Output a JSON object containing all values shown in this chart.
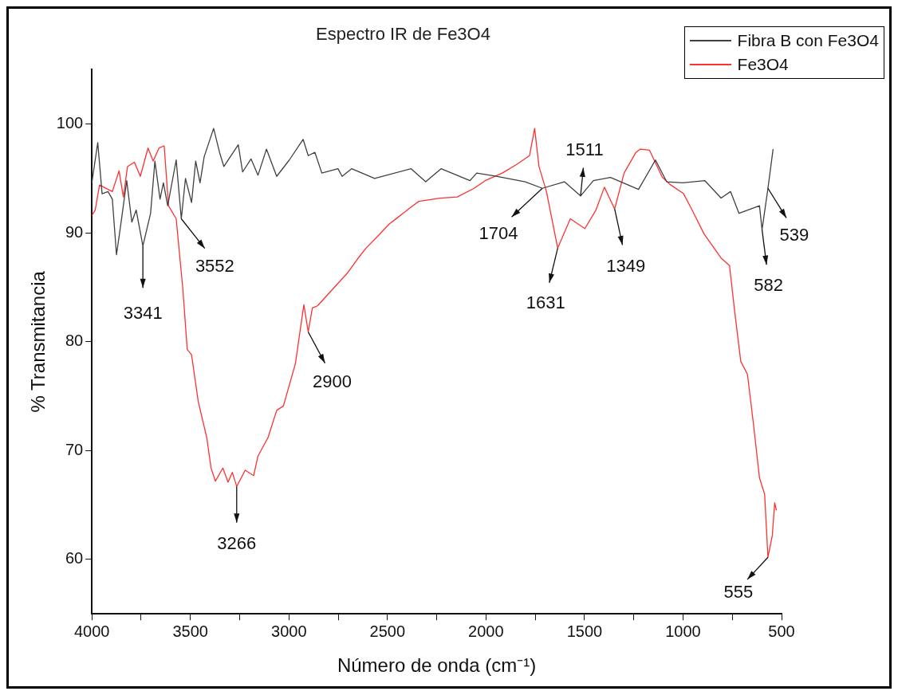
{
  "chart_data": {
    "type": "line",
    "title": "Espectro IR de Fe3O4",
    "xlabel": "Número de onda (cm⁻¹)",
    "ylabel": "% Transmitancia",
    "xlim": [
      4000,
      500
    ],
    "xticks": [
      4000,
      {
        "value": 3750,
        "label": null
      },
      3500,
      {
        "value": 3250,
        "label": null
      },
      3000,
      {
        "value": 2750,
        "label": null
      },
      2500,
      {
        "value": 2250,
        "label": null
      },
      2000,
      {
        "value": 1750,
        "label": null
      },
      1500,
      {
        "value": 1250,
        "label": null
      },
      1000,
      {
        "value": 750,
        "label": null
      },
      500
    ],
    "ylim": [
      55,
      105
    ],
    "yticks": [
      60,
      70,
      80,
      90,
      100
    ],
    "legend": "top right",
    "series": [
      {
        "name": "Fibra B con Fe3O4",
        "color": "#404040",
        "x": [
          4000,
          3970,
          3948,
          3918,
          3896,
          3875,
          3853,
          3823,
          3797,
          3775,
          3741,
          3702,
          3680,
          3654,
          3637,
          3615,
          3572,
          3546,
          3525,
          3494,
          3473,
          3451,
          3430,
          3382,
          3352,
          3330,
          3257,
          3235,
          3192,
          3157,
          3114,
          3062,
          2998,
          2928,
          2902,
          2868,
          2833,
          2751,
          2730,
          2682,
          2565,
          2380,
          2306,
          2228,
          2081,
          2047,
          1948,
          1801,
          1714,
          1602,
          1520,
          1455,
          1368,
          1226,
          1140,
          1083,
          1001,
          889,
          807,
          759,
          716,
          612,
          599,
          569,
          543
        ],
        "values": [
          94.6,
          98.3,
          93.6,
          93.8,
          93.1,
          88.0,
          90.8,
          94.8,
          91.0,
          92.1,
          88.8,
          91.8,
          96.6,
          93.1,
          94.6,
          92.5,
          96.7,
          91.3,
          95.0,
          92.8,
          96.6,
          94.6,
          97.0,
          99.6,
          97.4,
          96.1,
          98.1,
          95.6,
          96.8,
          95.3,
          97.7,
          95.2,
          96.7,
          98.6,
          97.1,
          97.4,
          95.5,
          95.9,
          95.2,
          95.9,
          95.0,
          95.9,
          94.7,
          95.9,
          94.8,
          95.5,
          95.2,
          94.7,
          94.1,
          94.7,
          93.4,
          94.8,
          95.1,
          94.0,
          96.7,
          94.7,
          94.6,
          94.8,
          93.2,
          93.8,
          91.8,
          92.5,
          90.3,
          94.1,
          97.7
        ]
      },
      {
        "name": "Fe3O4",
        "color": "#ff3030",
        "x": [
          4000,
          3983,
          3961,
          3896,
          3862,
          3840,
          3819,
          3784,
          3754,
          3715,
          3689,
          3659,
          3633,
          3611,
          3572,
          3538,
          3516,
          3494,
          3460,
          3417,
          3395,
          3373,
          3335,
          3309,
          3287,
          3265,
          3222,
          3179,
          3157,
          3106,
          3062,
          3028,
          2967,
          2941,
          2924,
          2902,
          2881,
          2855,
          2704,
          2652,
          2609,
          2544,
          2492,
          2449,
          2393,
          2341,
          2233,
          2146,
          2060,
          2004,
          1917,
          1844,
          1779,
          1753,
          1731,
          1693,
          1636,
          1572,
          1498,
          1442,
          1399,
          1347,
          1299,
          1239,
          1217,
          1170,
          1105,
          1062,
          997,
          954,
          893,
          807,
          764,
          738,
          707,
          673,
          643,
          612,
          586,
          569,
          547,
          535,
          526
        ],
        "values": [
          91.6,
          92.1,
          94.4,
          93.8,
          95.7,
          93.3,
          96.1,
          96.5,
          95.2,
          97.8,
          96.6,
          97.8,
          98.0,
          92.5,
          91.3,
          84.8,
          79.3,
          78.8,
          74.5,
          71.2,
          68.4,
          67.2,
          68.4,
          67.1,
          68.0,
          66.7,
          68.2,
          67.7,
          69.5,
          71.2,
          73.7,
          74.1,
          78.0,
          81.3,
          83.4,
          80.9,
          83.1,
          83.3,
          86.3,
          87.6,
          88.6,
          89.8,
          90.8,
          91.4,
          92.2,
          92.9,
          93.2,
          93.3,
          94.1,
          94.8,
          95.5,
          96.3,
          97.1,
          99.6,
          96.1,
          93.8,
          88.6,
          91.3,
          90.4,
          92.1,
          94.2,
          92.2,
          95.5,
          97.4,
          97.7,
          97.6,
          95.1,
          94.4,
          93.6,
          92.1,
          89.9,
          87.7,
          87.0,
          82.8,
          78.2,
          77.0,
          72.5,
          67.5,
          66.0,
          60.2,
          62.2,
          65.2,
          64.5
        ]
      }
    ],
    "annotations": [
      {
        "text": "3341",
        "x": 3741,
        "y": 88.8
      },
      {
        "text": "3552",
        "x": 3546,
        "y": 91.3
      },
      {
        "text": "3266",
        "x": 3265,
        "y": 66.7
      },
      {
        "text": "2900",
        "x": 2902,
        "y": 80.9
      },
      {
        "text": "1704",
        "x": 1714,
        "y": 94.1
      },
      {
        "text": "1631",
        "x": 1636,
        "y": 88.6
      },
      {
        "text": "1511",
        "x": 1520,
        "y": 93.4
      },
      {
        "text": "1349",
        "x": 1347,
        "y": 92.2
      },
      {
        "text": "582",
        "x": 599,
        "y": 90.3
      },
      {
        "text": "539",
        "x": 569,
        "y": 94.1
      },
      {
        "text": "555",
        "x": 569,
        "y": 60.2
      }
    ]
  }
}
